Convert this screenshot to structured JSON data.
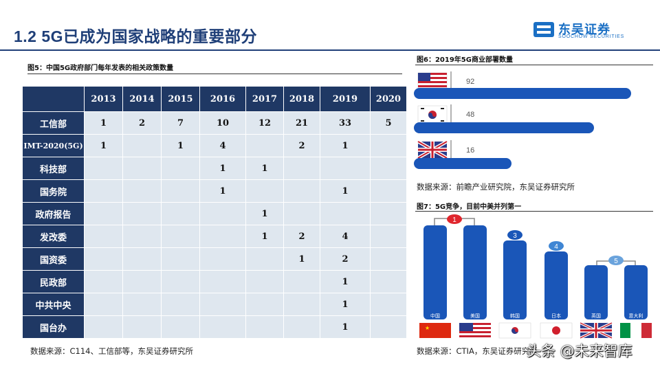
{
  "header": {
    "title": "1.2 5G已成为国家战略的重要部分",
    "logo_cn": "东吴证券",
    "logo_en": "SOOCHOW SECURITIES",
    "accent": "#1f3f78"
  },
  "fig5": {
    "caption": "图5：中国5G政府部门每年发表的相关政策数量",
    "years": [
      "2013",
      "2014",
      "2015",
      "2016",
      "2017",
      "2018",
      "2019",
      "2020"
    ],
    "rows": [
      {
        "dept": "工信部",
        "values": [
          "1",
          "2",
          "7",
          "10",
          "12",
          "21",
          "33",
          "5"
        ]
      },
      {
        "dept": "IMT-2020(5G)",
        "values": [
          "1",
          "",
          "1",
          "4",
          "",
          "2",
          "1",
          ""
        ]
      },
      {
        "dept": "科技部",
        "values": [
          "",
          "",
          "",
          "1",
          "1",
          "",
          "",
          ""
        ]
      },
      {
        "dept": "国务院",
        "values": [
          "",
          "",
          "",
          "1",
          "",
          "",
          "1",
          ""
        ]
      },
      {
        "dept": "政府报告",
        "values": [
          "",
          "",
          "",
          "",
          "1",
          "",
          "",
          ""
        ]
      },
      {
        "dept": "发改委",
        "values": [
          "",
          "",
          "",
          "",
          "1",
          "2",
          "4",
          ""
        ]
      },
      {
        "dept": "国资委",
        "values": [
          "",
          "",
          "",
          "",
          "",
          "1",
          "2",
          ""
        ]
      },
      {
        "dept": "民政部",
        "values": [
          "",
          "",
          "",
          "",
          "",
          "",
          "1",
          ""
        ]
      },
      {
        "dept": "中共中央",
        "values": [
          "",
          "",
          "",
          "",
          "",
          "",
          "1",
          ""
        ]
      },
      {
        "dept": "国台办",
        "values": [
          "",
          "",
          "",
          "",
          "",
          "",
          "1",
          ""
        ]
      }
    ],
    "source": "数据来源：C114、工信部等，东吴证券研究所",
    "header_color": "#1f3864",
    "cell_color": "#dfe7ef"
  },
  "fig6": {
    "caption": "图6：2019年5G商业部署数量",
    "bars": [
      {
        "country": "USA",
        "value": "92",
        "flag": "us-flag-icon"
      },
      {
        "country": "Korea",
        "value": "48",
        "flag": "kr-flag-icon"
      },
      {
        "country": "UK",
        "value": "16",
        "flag": "uk-flag-icon"
      }
    ],
    "source": "数据来源：前瞻产业研究院，东吴证券研究所",
    "bar_color": "#1a56b8"
  },
  "fig7": {
    "caption": "图7：5G竞争，目前中美并列第一",
    "countries": [
      {
        "name": "中国",
        "flag": "cn-flag-icon"
      },
      {
        "name": "美国",
        "flag": "us-flag-icon"
      },
      {
        "name": "韩国",
        "flag": "kr-flag-icon"
      },
      {
        "name": "日本",
        "flag": "jp-flag-icon"
      },
      {
        "name": "英国",
        "flag": "uk-flag-icon"
      },
      {
        "name": "意大利",
        "flag": "it-flag-icon"
      }
    ],
    "ranks": [
      "1",
      "3",
      "4",
      "5"
    ],
    "source": "数据来源：CTIA，东吴证券研究所",
    "rank1_color": "#e0262d",
    "rank_color": "#1a56b8"
  },
  "watermark": "头条 @未来智库"
}
